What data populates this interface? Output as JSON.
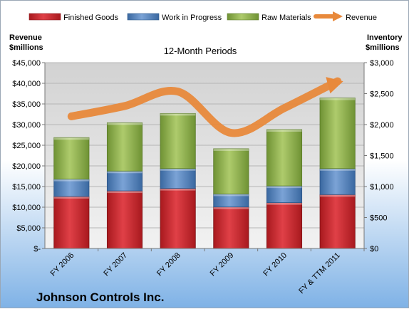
{
  "chart_data": {
    "type": "bar",
    "stacked": true,
    "title": "12-Month Periods",
    "categories": [
      "FY 2006",
      "FY 2007",
      "FY 2008",
      "FY 2009",
      "FY 2010",
      "FY & TTM 2011"
    ],
    "series": [
      {
        "name": "Finished Goods",
        "axis": "right",
        "color": "#c0282d",
        "values": [
          840,
          930,
          970,
          670,
          740,
          870
        ]
      },
      {
        "name": "Work in Progress",
        "axis": "right",
        "color": "#4f7fb8",
        "values": [
          280,
          320,
          320,
          210,
          270,
          420
        ]
      },
      {
        "name": "Raw Materials",
        "axis": "right",
        "color": "#8dae4b",
        "values": [
          670,
          780,
          890,
          730,
          910,
          1140
        ]
      }
    ],
    "line_series": {
      "name": "Revenue",
      "axis": "left",
      "color": "#e8893b",
      "values": [
        32000,
        34500,
        38000,
        28000,
        34000,
        40500
      ]
    },
    "left_axis": {
      "label_line1": "Revenue",
      "label_line2": "$millions",
      "ylim": [
        0,
        45000
      ],
      "ticks": [
        "$-",
        "$5,000",
        "$10,000",
        "$15,000",
        "$20,000",
        "$25,000",
        "$30,000",
        "$35,000",
        "$40,000",
        "$45,000"
      ]
    },
    "right_axis": {
      "label_line1": "Inventory",
      "label_line2": "$millions",
      "ylim": [
        0,
        3000
      ],
      "ticks": [
        "$0",
        "$500",
        "$1,000",
        "$1,500",
        "$2,000",
        "$2,500",
        "$3,000"
      ]
    },
    "legend_position": "top",
    "grid": true
  },
  "footer": {
    "company": "Johnson Controls Inc."
  }
}
